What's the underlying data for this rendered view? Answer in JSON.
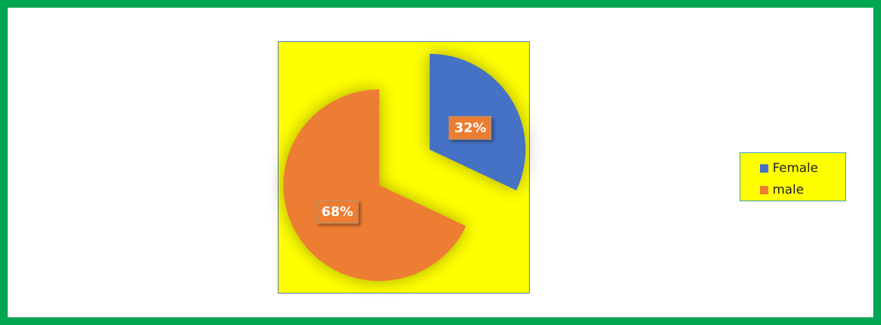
{
  "chart_data": {
    "type": "pie",
    "categories": [
      "Female",
      "male"
    ],
    "values": [
      32,
      68
    ],
    "data_labels": [
      "32%",
      "68%"
    ],
    "colors": [
      "#4472c4",
      "#ed7d31"
    ],
    "label_background": "#ed7d31",
    "plot_background": "#ffff00",
    "border_color": "#00a651",
    "exploded": true,
    "start_angle_deg": 0,
    "legend": {
      "position": "right",
      "entries": [
        "Female",
        "male"
      ]
    }
  }
}
